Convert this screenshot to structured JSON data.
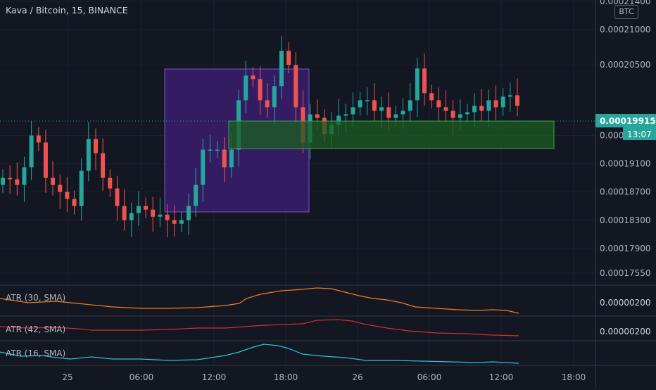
{
  "header": {
    "title": "Kava / Bitcoin, 15, BINANCE",
    "currency_badge": "BTC"
  },
  "price_axis": {
    "ticks": [
      "0.00021000",
      "0.00020500",
      "0.00019500",
      "0.00019100",
      "0.00018700",
      "0.00018300",
      "0.00017900",
      "0.00017550"
    ],
    "clipped_top_label": "0.00021400",
    "current_price": "0.00019915",
    "countdown": "13:07"
  },
  "indicators": [
    {
      "label": "ATR (30, SMA)",
      "value": "0.00000200",
      "color": "#f57c1f"
    },
    {
      "label": "ATR (42, SMA)",
      "value": "0.00000200",
      "color": "#d32f2f"
    },
    {
      "label": "ATR (16, SMA)",
      "value": "",
      "color": "#26c6da"
    }
  ],
  "time_axis": {
    "labels": [
      "25",
      "06:00",
      "12:00",
      "18:00",
      "26",
      "06:00",
      "12:00",
      "18:00"
    ]
  },
  "colors": {
    "background": "#131722",
    "bull": "#26a69a",
    "bear": "#ef5350",
    "purple_box": "#3b1d6e",
    "green_box": "#1b5e20",
    "price_tag": "#26a69a",
    "grid": "#1f2430",
    "border": "#363a45"
  },
  "chart_data": {
    "type": "candlestick",
    "title": "Kava / Bitcoin, 15, BINANCE",
    "y_range": [
      0.000174,
      0.000214
    ],
    "current_price": 0.00019915,
    "close_series": [
      0.000189,
      0.0001888,
      0.000188,
      0.0001905,
      0.000195,
      0.000194,
      0.000189,
      0.000188,
      0.000187,
      0.000186,
      0.000185,
      0.00019,
      0.0001945,
      0.0001925,
      0.000189,
      0.0001875,
      0.000185,
      0.000183,
      0.000184,
      0.000185,
      0.0001845,
      0.0001835,
      0.0001838,
      0.000183,
      0.0001825,
      0.000183,
      0.000185,
      0.000188,
      0.000193,
      0.000193,
      0.000193,
      0.0001905,
      0.000193,
      0.0002,
      0.0002035,
      0.000203,
      0.0002,
      0.000199,
      0.000202,
      0.000207,
      0.000205,
      0.000199,
      0.000194,
      0.000198,
      0.0001975,
      0.0001952,
      0.0001965,
      0.0001978,
      0.000198,
      0.000199,
      0.0002,
      0.0002,
      0.0001985,
      0.000199,
      0.0001975,
      0.000198,
      0.0001985,
      0.0002,
      0.0002045,
      0.000201,
      0.0002,
      0.000199,
      0.0001985,
      0.0001975,
      0.000198,
      0.0001983,
      0.0001992,
      0.0001985,
      0.0002,
      0.000199,
      0.0002005,
      0.0002007,
      0.0001992
    ]
  }
}
